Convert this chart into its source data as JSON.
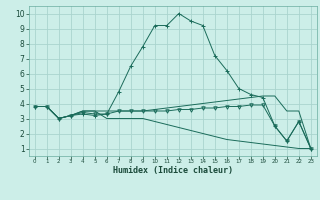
{
  "xlabel": "Humidex (Indice chaleur)",
  "bg_color": "#cceee8",
  "grid_color": "#aad4ce",
  "line_color": "#1a6b5a",
  "xlim": [
    -0.5,
    23.5
  ],
  "ylim": [
    0.5,
    10.5
  ],
  "xticks": [
    0,
    1,
    2,
    3,
    4,
    5,
    6,
    7,
    8,
    9,
    10,
    11,
    12,
    13,
    14,
    15,
    16,
    17,
    18,
    19,
    20,
    21,
    22,
    23
  ],
  "yticks": [
    1,
    2,
    3,
    4,
    5,
    6,
    7,
    8,
    9,
    10
  ],
  "series": [
    {
      "x": [
        0,
        1,
        2,
        3,
        4,
        5,
        6,
        7,
        8,
        9,
        10,
        11,
        12,
        13,
        14,
        15,
        16,
        17,
        18,
        19,
        20,
        21,
        22,
        23
      ],
      "y": [
        3.8,
        3.8,
        3.0,
        3.2,
        3.3,
        3.2,
        3.3,
        4.8,
        6.5,
        7.8,
        9.2,
        9.2,
        10.0,
        9.5,
        9.2,
        7.2,
        6.2,
        5.0,
        4.6,
        4.4,
        2.5,
        1.5,
        2.8,
        1.0
      ],
      "marker": "+"
    },
    {
      "x": [
        0,
        1,
        2,
        3,
        4,
        5,
        6,
        7,
        8,
        9,
        10,
        11,
        12,
        13,
        14,
        15,
        16,
        17,
        18,
        19,
        20,
        21,
        22,
        23
      ],
      "y": [
        3.8,
        3.8,
        3.0,
        3.2,
        3.5,
        3.5,
        3.5,
        3.5,
        3.5,
        3.5,
        3.6,
        3.7,
        3.8,
        3.9,
        4.0,
        4.1,
        4.2,
        4.3,
        4.4,
        4.5,
        4.5,
        3.5,
        3.5,
        1.0
      ],
      "marker": null
    },
    {
      "x": [
        0,
        1,
        2,
        3,
        4,
        5,
        6,
        7,
        8,
        9,
        10,
        11,
        12,
        13,
        14,
        15,
        16,
        17,
        18,
        19,
        20,
        21,
        22,
        23
      ],
      "y": [
        3.8,
        3.8,
        3.0,
        3.2,
        3.5,
        3.5,
        3.0,
        3.0,
        3.0,
        3.0,
        2.8,
        2.6,
        2.4,
        2.2,
        2.0,
        1.8,
        1.6,
        1.5,
        1.4,
        1.3,
        1.2,
        1.1,
        1.0,
        1.0
      ],
      "marker": null
    },
    {
      "x": [
        0,
        1,
        2,
        3,
        4,
        5,
        6,
        7,
        8,
        9,
        10,
        11,
        12,
        13,
        14,
        15,
        16,
        17,
        18,
        19,
        20,
        21,
        22,
        23
      ],
      "y": [
        3.8,
        3.8,
        3.0,
        3.2,
        3.4,
        3.3,
        3.3,
        3.5,
        3.5,
        3.5,
        3.5,
        3.5,
        3.6,
        3.6,
        3.7,
        3.7,
        3.8,
        3.8,
        3.9,
        3.9,
        2.5,
        1.5,
        2.8,
        1.0
      ],
      "marker": "v"
    }
  ]
}
